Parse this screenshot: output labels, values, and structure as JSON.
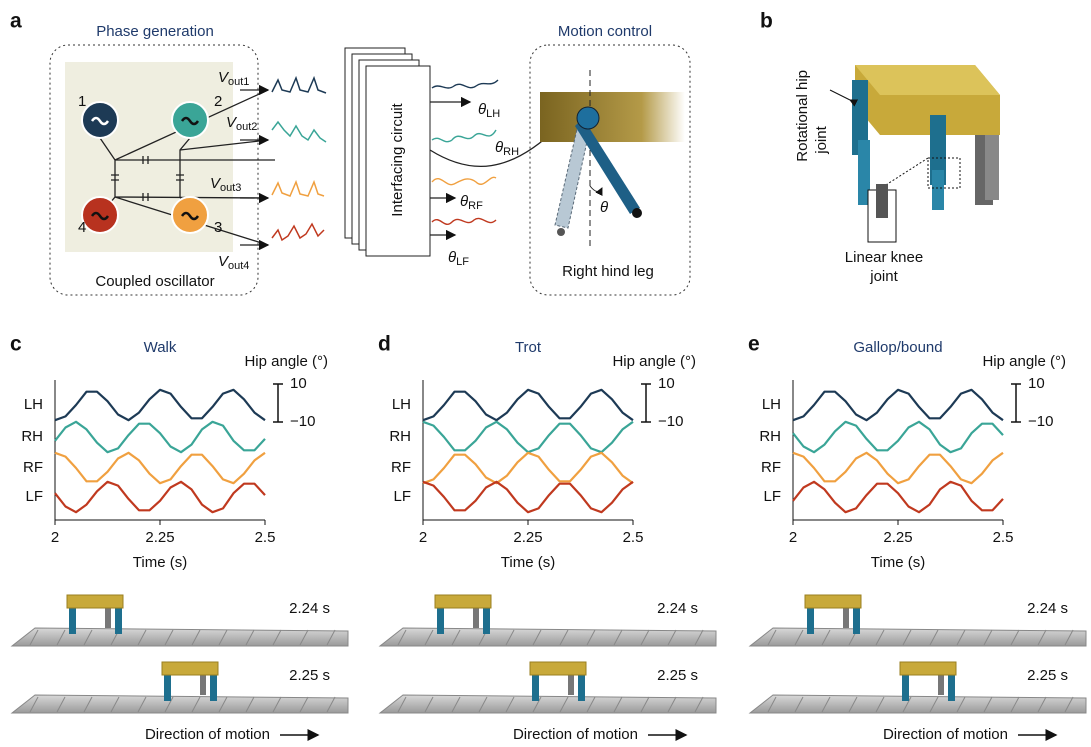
{
  "panel_a": {
    "label": "a",
    "phase_generation": "Phase generation",
    "motion_control": "Motion control",
    "coupled_oscillator": "Coupled oscillator",
    "oscillators": [
      "1",
      "2",
      "4",
      "3"
    ],
    "outputs": [
      {
        "symbol": "V",
        "subscript": "out1"
      },
      {
        "symbol": "V",
        "subscript": "out2"
      },
      {
        "symbol": "V",
        "subscript": "out3"
      },
      {
        "symbol": "V",
        "subscript": "out4"
      }
    ],
    "interfacing_circuit": "Interfacing circuit",
    "angles": [
      {
        "symbol": "θ",
        "subscript": "LH"
      },
      {
        "symbol": "θ",
        "subscript": "RH"
      },
      {
        "symbol": "θ",
        "subscript": "RF"
      },
      {
        "symbol": "θ",
        "subscript": "LF"
      }
    ],
    "theta": "θ",
    "right_hind_leg": "Right hind leg"
  },
  "panel_b": {
    "label": "b",
    "hip_joint": [
      "Rotational hip",
      "joint"
    ],
    "knee_joint": [
      "Linear knee",
      "joint"
    ]
  },
  "chart_data": [
    {
      "type": "line",
      "label": "c",
      "title": "Walk",
      "x": [
        2,
        2.025,
        2.05,
        2.075,
        2.1,
        2.125,
        2.15,
        2.175,
        2.2,
        2.225,
        2.25,
        2.275,
        2.3,
        2.325,
        2.35,
        2.375,
        2.4,
        2.425,
        2.45,
        2.475,
        2.5
      ],
      "series": [
        {
          "name": "LH",
          "color": "#1d3a55",
          "values": [
            -8,
            -6,
            0,
            7,
            7,
            2,
            -5,
            -8,
            -4,
            3,
            8,
            6,
            -1,
            -7,
            -7,
            -1,
            6,
            8,
            3,
            -4,
            -8
          ]
        },
        {
          "name": "RH",
          "color": "#3aa597",
          "values": [
            -2,
            5,
            8,
            4,
            -3,
            -8,
            -6,
            1,
            7,
            7,
            2,
            -5,
            -8,
            -4,
            4,
            8,
            6,
            -2,
            -7,
            -7,
            -1
          ]
        },
        {
          "name": "RF",
          "color": "#f0a040",
          "values": [
            8,
            6,
            0,
            -7,
            -7,
            -2,
            5,
            8,
            4,
            -3,
            -8,
            -6,
            1,
            7,
            7,
            1,
            -6,
            -8,
            -3,
            4,
            8
          ]
        },
        {
          "name": "LF",
          "color": "#c0391f",
          "values": [
            2,
            -5,
            -8,
            -4,
            3,
            8,
            6,
            -1,
            -7,
            -7,
            -2,
            5,
            8,
            4,
            -4,
            -8,
            -6,
            2,
            7,
            7,
            1
          ]
        }
      ],
      "xlim": [
        2,
        2.5
      ],
      "xticks": [
        2,
        2.25,
        2.5
      ],
      "xlabel": "Time (s)",
      "ylabel": "Hip angle (°)",
      "ylim": [
        -10,
        10
      ],
      "yticks": [
        10,
        {
          "value": -10,
          "label": "−10"
        }
      ],
      "snapshots": [
        "2.24 s",
        "2.25 s"
      ],
      "direction": "Direction of motion"
    },
    {
      "type": "line",
      "label": "d",
      "title": "Trot",
      "x": [
        2,
        2.025,
        2.05,
        2.075,
        2.1,
        2.125,
        2.15,
        2.175,
        2.2,
        2.225,
        2.25,
        2.275,
        2.3,
        2.325,
        2.35,
        2.375,
        2.4,
        2.425,
        2.45,
        2.475,
        2.5
      ],
      "series": [
        {
          "name": "LH",
          "color": "#1d3a55",
          "values": [
            -8,
            -6,
            0,
            7,
            7,
            2,
            -5,
            -8,
            -4,
            3,
            8,
            6,
            -1,
            -7,
            -7,
            -1,
            6,
            8,
            3,
            -4,
            -8
          ]
        },
        {
          "name": "RH",
          "color": "#3aa597",
          "values": [
            8,
            6,
            0,
            -7,
            -7,
            -2,
            5,
            8,
            4,
            -3,
            -8,
            -6,
            1,
            7,
            7,
            1,
            -6,
            -8,
            -3,
            4,
            8
          ]
        },
        {
          "name": "RF",
          "color": "#f0a040",
          "values": [
            -8,
            -6,
            0,
            7,
            7,
            2,
            -5,
            -8,
            -4,
            3,
            8,
            6,
            -1,
            -7,
            -7,
            -1,
            6,
            8,
            3,
            -4,
            -8
          ]
        },
        {
          "name": "LF",
          "color": "#c0391f",
          "values": [
            8,
            6,
            0,
            -7,
            -7,
            -2,
            5,
            8,
            4,
            -3,
            -8,
            -6,
            1,
            7,
            7,
            1,
            -6,
            -8,
            -3,
            4,
            8
          ]
        }
      ],
      "xlim": [
        2,
        2.5
      ],
      "xticks": [
        2,
        2.25,
        2.5
      ],
      "xlabel": "Time (s)",
      "ylabel": "Hip angle (°)",
      "ylim": [
        -10,
        10
      ],
      "yticks": [
        10,
        {
          "value": -10,
          "label": "−10"
        }
      ],
      "snapshots": [
        "2.24 s",
        "2.25 s"
      ],
      "direction": "Direction of motion"
    },
    {
      "type": "line",
      "label": "e",
      "title": "Gallop/bound",
      "x": [
        2,
        2.025,
        2.05,
        2.075,
        2.1,
        2.125,
        2.15,
        2.175,
        2.2,
        2.225,
        2.25,
        2.275,
        2.3,
        2.325,
        2.35,
        2.375,
        2.4,
        2.425,
        2.45,
        2.475,
        2.5
      ],
      "series": [
        {
          "name": "LH",
          "color": "#1d3a55",
          "values": [
            -8,
            -6,
            0,
            7,
            7,
            2,
            -5,
            -8,
            -4,
            3,
            8,
            6,
            -1,
            -7,
            -7,
            -1,
            6,
            8,
            3,
            -4,
            -8
          ]
        },
        {
          "name": "RH",
          "color": "#3aa597",
          "values": [
            2,
            -5,
            -8,
            -4,
            3,
            8,
            6,
            -1,
            -7,
            -7,
            -2,
            5,
            8,
            4,
            -4,
            -8,
            -6,
            2,
            7,
            7,
            1
          ]
        },
        {
          "name": "RF",
          "color": "#f0a040",
          "values": [
            8,
            6,
            0,
            -7,
            -7,
            -2,
            5,
            8,
            4,
            -3,
            -8,
            -6,
            1,
            7,
            7,
            1,
            -6,
            -8,
            -3,
            4,
            8
          ]
        },
        {
          "name": "LF",
          "color": "#c0391f",
          "values": [
            -2,
            5,
            8,
            4,
            -3,
            -8,
            -6,
            1,
            7,
            7,
            2,
            -5,
            -8,
            -4,
            4,
            8,
            6,
            -2,
            -7,
            -7,
            -1
          ]
        }
      ],
      "xlim": [
        2,
        2.5
      ],
      "xticks": [
        2,
        2.25,
        2.5
      ],
      "xlabel": "Time (s)",
      "ylabel": "Hip angle (°)",
      "ylim": [
        -10,
        10
      ],
      "yticks": [
        10,
        {
          "value": -10,
          "label": "−10"
        }
      ],
      "snapshots": [
        "2.24 s",
        "2.25 s"
      ],
      "direction": "Direction of motion"
    }
  ]
}
